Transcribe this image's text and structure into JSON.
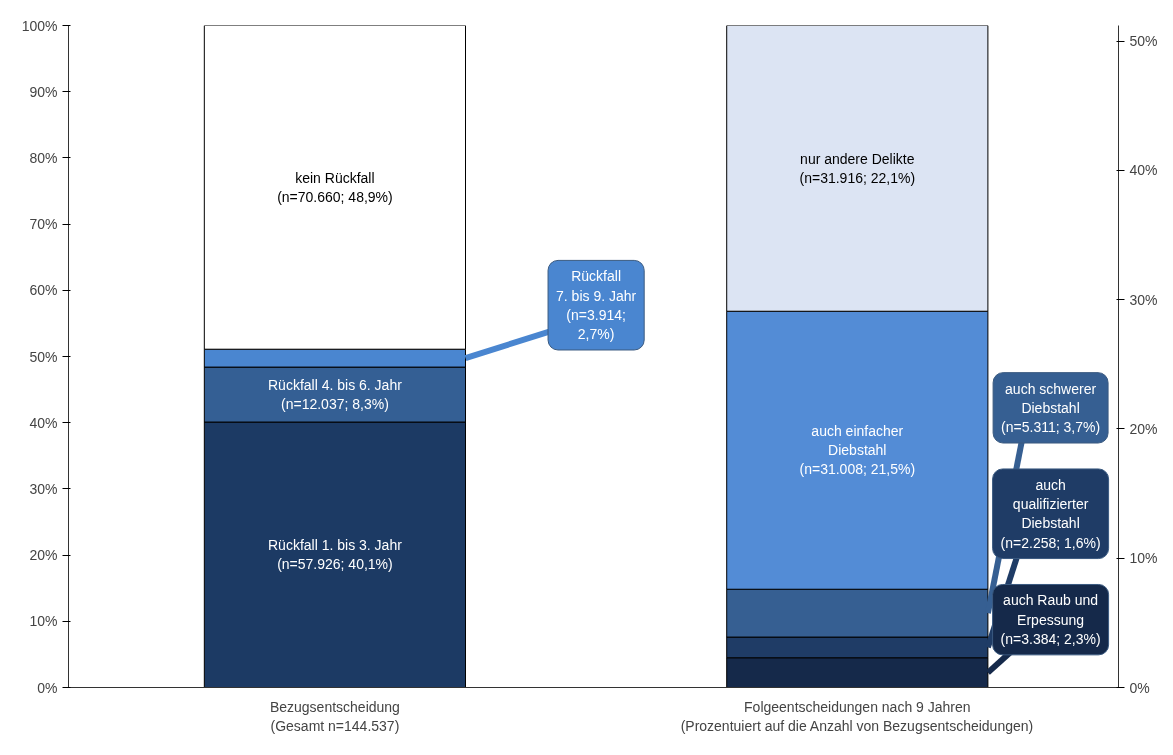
{
  "chart_data": {
    "type": "bar",
    "stacked": true,
    "categories": [
      "Bezugsentscheidung\n(Gesamt n=144.537)",
      "Folgeentscheidungen nach 9 Jahren\n(Prozentuiert auf die Anzahl von Bezugsentscheidungen)"
    ],
    "series": [
      {
        "color": "#1c3a64",
        "values": [
          40.1,
          null
        ],
        "value_labels": [
          "Rückfall 1. bis 3. Jahr\n(n=57.926; 40,1%)",
          null
        ]
      },
      {
        "color": "#345f94",
        "values": [
          8.3,
          null
        ],
        "value_labels": [
          "Rückfall 4. bis 6. Jahr\n(n=12.037; 8,3%)",
          null
        ]
      },
      {
        "color": "#4a86d0",
        "values": [
          2.7,
          null
        ],
        "value_labels": [
          "Rückfall\n7. bis 9. Jahr\n(n=3.914;\n2,7%)",
          null
        ]
      },
      {
        "color": "#ffffff",
        "values": [
          48.9,
          null
        ],
        "value_labels": [
          "kein Rückfall\n(n=70.660; 48,9%)",
          null
        ]
      },
      {
        "color": "#15294a",
        "axis": "y2",
        "values": [
          null,
          2.3
        ],
        "value_labels": [
          null,
          "auch Raub und\nErpessung\n(n=3.384; 2,3%)"
        ]
      },
      {
        "color": "#1f3c66",
        "axis": "y2",
        "values": [
          null,
          1.6
        ],
        "value_labels": [
          null,
          "auch\nqualifizierter\nDiebstahl\n(n=2.258; 1,6%)"
        ]
      },
      {
        "color": "#365f92",
        "axis": "y2",
        "values": [
          null,
          3.7
        ],
        "value_labels": [
          null,
          "auch schwerer\nDiebstahl\n(n=5.311; 3,7%)"
        ]
      },
      {
        "color": "#538cd6",
        "axis": "y2",
        "values": [
          null,
          21.5
        ],
        "value_labels": [
          null,
          "auch einfacher\nDiebstahl\n(n=31.008; 21,5%)"
        ]
      },
      {
        "color": "#dce4f3",
        "axis": "y2",
        "values": [
          null,
          22.1
        ],
        "value_labels": [
          null,
          "nur andere Delikte\n(n=31.916; 22,1%)"
        ]
      }
    ],
    "ylim": [
      0,
      100
    ],
    "yticks": [
      {
        "value": 0,
        "label": "0%"
      },
      {
        "value": 10,
        "label": "10%"
      },
      {
        "value": 20,
        "label": "20%"
      },
      {
        "value": 30,
        "label": "30%"
      },
      {
        "value": 40,
        "label": "40%"
      },
      {
        "value": 50,
        "label": "50%"
      },
      {
        "value": 60,
        "label": "60%"
      },
      {
        "value": 70,
        "label": "70%"
      },
      {
        "value": 80,
        "label": "80%"
      },
      {
        "value": 90,
        "label": "90%"
      },
      {
        "value": 100,
        "label": "100%"
      }
    ],
    "y2lim": [
      0,
      51.2
    ],
    "y2ticks": [
      {
        "value": 0,
        "label": "0%"
      },
      {
        "value": 10,
        "label": "10%"
      },
      {
        "value": 20,
        "label": "20%"
      },
      {
        "value": 30,
        "label": "30%"
      },
      {
        "value": 40,
        "label": "40%"
      },
      {
        "value": 50,
        "label": "50%"
      }
    ],
    "grid": false
  }
}
